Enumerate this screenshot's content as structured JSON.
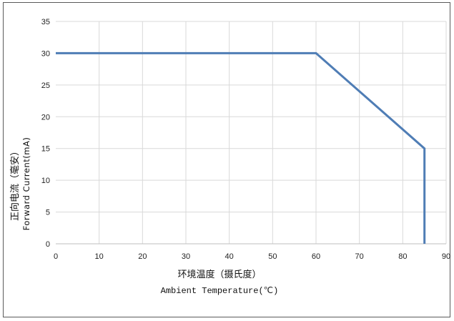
{
  "chart_data": {
    "type": "line",
    "title": "",
    "xlabel": "环境温度（摄氏度）",
    "xlabel_en": "Ambient Temperature(℃)",
    "ylabel": "正向电流（毫安）",
    "ylabel_en": "Forward Current(mA)",
    "xlim": [
      0,
      90
    ],
    "ylim": [
      0,
      35
    ],
    "xticks": [
      "0",
      "10",
      "20",
      "30",
      "40",
      "50",
      "60",
      "70",
      "80",
      "90"
    ],
    "yticks": [
      "0",
      "5",
      "10",
      "15",
      "20",
      "25",
      "30",
      "35"
    ],
    "grid": true,
    "legend": "none",
    "series": [
      {
        "x": [
          0,
          60,
          85,
          85
        ],
        "y": [
          30,
          30,
          15,
          0
        ],
        "color": "#4f7db5"
      }
    ]
  }
}
